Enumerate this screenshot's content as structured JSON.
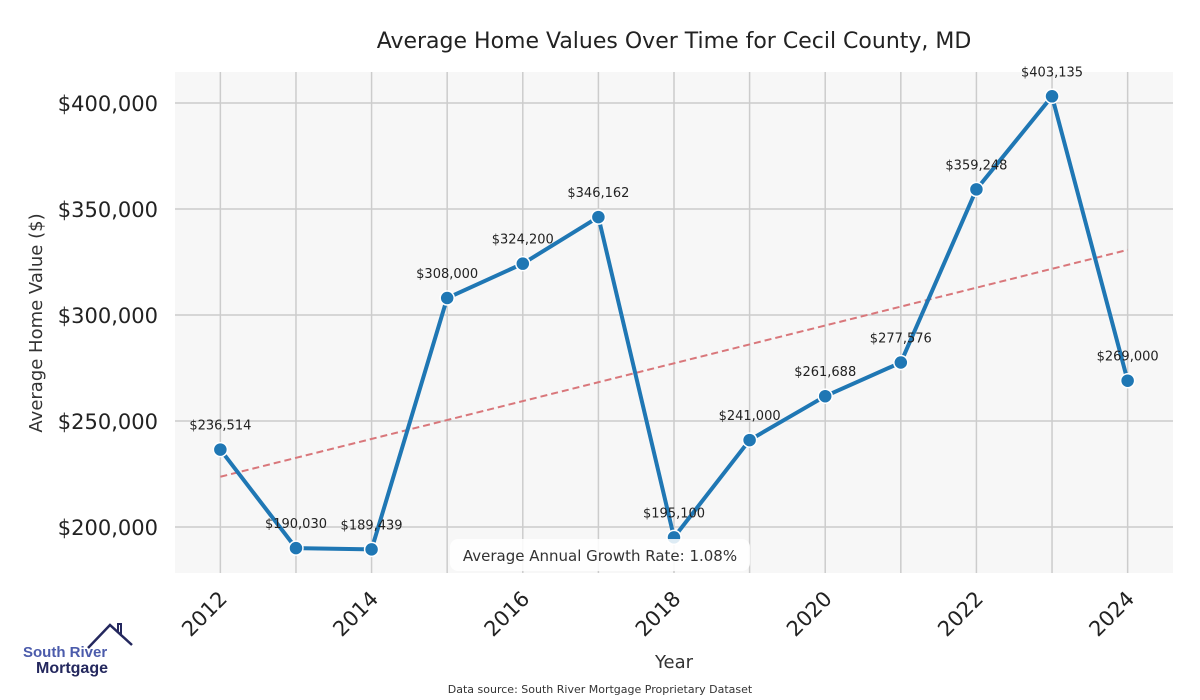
{
  "chart_data": {
    "type": "line",
    "title": "Average Home Values Over Time for Cecil County, MD",
    "xlabel": "Year",
    "ylabel": "Average Home Value ($)",
    "x": [
      2012,
      2013,
      2014,
      2015,
      2016,
      2017,
      2018,
      2019,
      2020,
      2021,
      2022,
      2023,
      2024
    ],
    "series": [
      {
        "name": "Average Home Value",
        "color": "#1f77b4",
        "values": [
          236514,
          190030,
          189439,
          308000,
          324200,
          346162,
          195100,
          241000,
          261688,
          277576,
          359248,
          403135,
          269000
        ]
      }
    ],
    "data_labels": [
      "$236,514",
      "$190,030",
      "$189,439",
      "$308,000",
      "$324,200",
      "$346,162",
      "$195,100",
      "$241,000",
      "$261,688",
      "$277,576",
      "$359,248",
      "$403,135",
      "$269,000"
    ],
    "trend": {
      "name": "Trend",
      "color": "#d9777b",
      "start": [
        2012,
        223700
      ],
      "end": [
        2024,
        330700
      ]
    },
    "xticks": [
      "2012",
      "2014",
      "2016",
      "2018",
      "2020",
      "2022",
      "2024"
    ],
    "xtick_values": [
      2012,
      2014,
      2016,
      2018,
      2020,
      2022,
      2024
    ],
    "yticks": [
      "$200,000",
      "$250,000",
      "$300,000",
      "$350,000",
      "$400,000"
    ],
    "ytick_values": [
      200000,
      250000,
      300000,
      350000,
      400000
    ],
    "xlim": [
      2011.4,
      2024.6
    ],
    "ylim": [
      178300,
      414600
    ],
    "grid": true,
    "annotation": "Average Annual Growth Rate: 1.08%",
    "footer": "Data source: South River Mortgage Proprietary Dataset"
  },
  "logo": {
    "line1": "South River",
    "line2": "Mortgage"
  }
}
